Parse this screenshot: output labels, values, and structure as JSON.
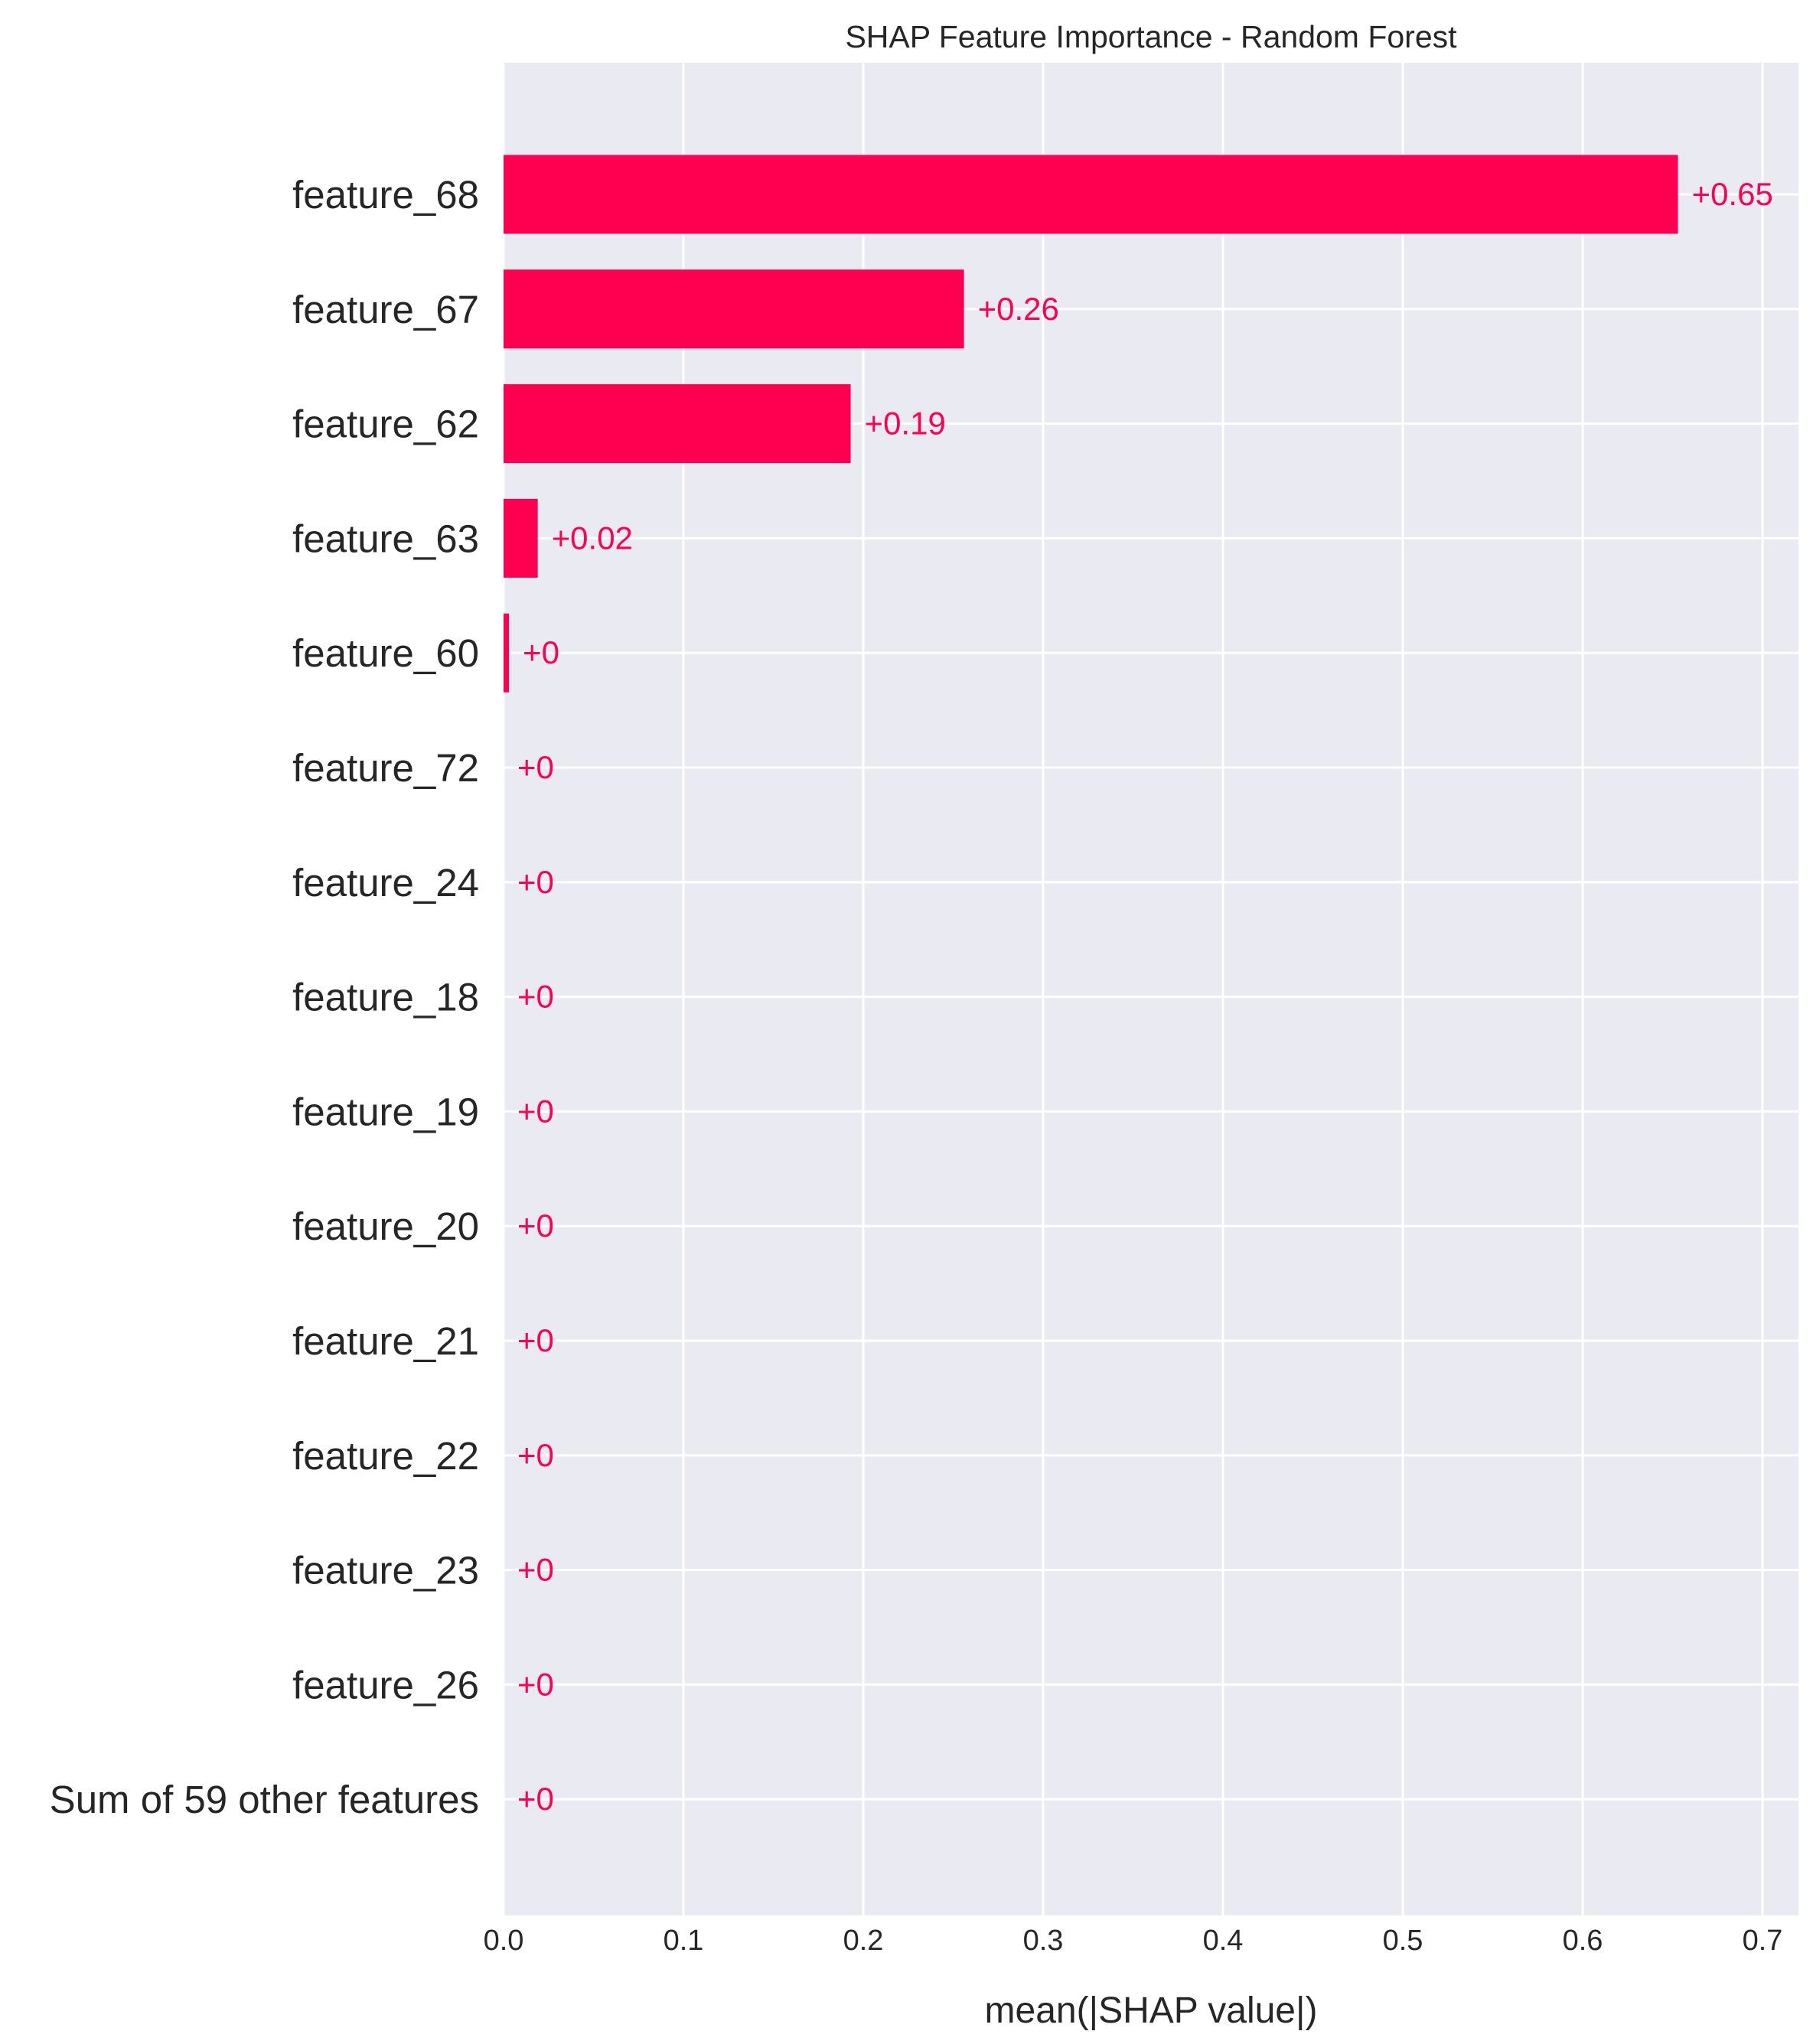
{
  "chart_data": {
    "type": "bar",
    "orientation": "horizontal",
    "title": "SHAP Feature Importance - Random Forest",
    "xlabel": "mean(|SHAP value|)",
    "ylabel": "",
    "xlim": [
      0.0,
      0.72
    ],
    "xticks": [
      0.0,
      0.1,
      0.2,
      0.3,
      0.4,
      0.5,
      0.6,
      0.7
    ],
    "xtick_labels": [
      "0.0",
      "0.1",
      "0.2",
      "0.3",
      "0.4",
      "0.5",
      "0.6",
      "0.7"
    ],
    "grid": true,
    "background_color": "#eaeaf2",
    "bar_color": "#ff0051",
    "categories": [
      "feature_68",
      "feature_67",
      "feature_62",
      "feature_63",
      "feature_60",
      "feature_72",
      "feature_24",
      "feature_18",
      "feature_19",
      "feature_20",
      "feature_21",
      "feature_22",
      "feature_23",
      "feature_26",
      "Sum of 59 other features"
    ],
    "values": [
      0.653,
      0.256,
      0.193,
      0.019,
      0.003,
      0.0,
      0.0,
      0.0,
      0.0,
      0.0,
      0.0,
      0.0,
      0.0,
      0.0,
      0.0
    ],
    "value_labels": [
      "+0.65",
      "+0.26",
      "+0.19",
      "+0.02",
      "+0",
      "+0",
      "+0",
      "+0",
      "+0",
      "+0",
      "+0",
      "+0",
      "+0",
      "+0",
      "+0"
    ]
  }
}
